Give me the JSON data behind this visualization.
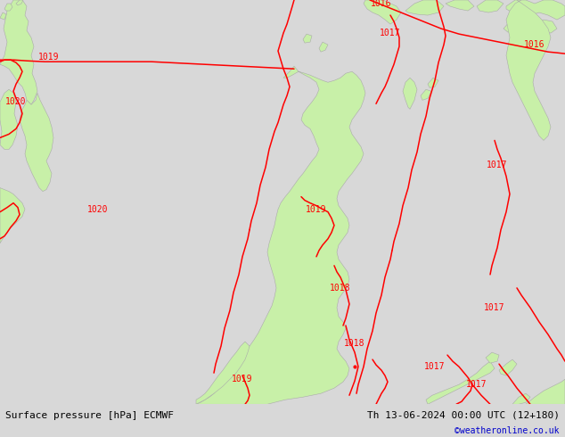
{
  "title_left": "Surface pressure [hPa] ECMWF",
  "title_right": "Th 13-06-2024 00:00 UTC (12+180)",
  "credit": "©weatheronline.co.uk",
  "bg_color": "#d8d8d8",
  "land_color": "#c8f0a8",
  "sea_color": "#d8d8d8",
  "contour_color": "#ff0000",
  "contour_linewidth": 1.1,
  "label_color": "#ff0000",
  "label_fontsize": 7,
  "bottom_bar_color": "#e8e8e8",
  "title_fontsize": 8,
  "credit_color": "#0000cc",
  "border_color": "#aaaaaa",
  "border_lw": 0.4
}
